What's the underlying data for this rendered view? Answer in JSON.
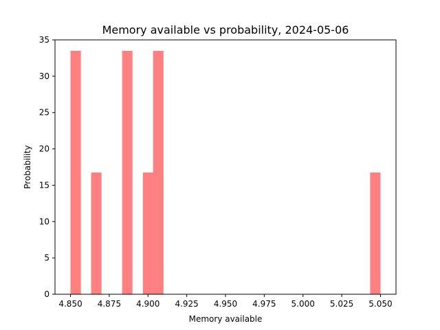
{
  "chart_data": {
    "type": "bar",
    "title": "Memory available vs probability, 2024-05-06",
    "xlabel": "Memory available",
    "ylabel": "Probability",
    "xlim": [
      4.84,
      5.06
    ],
    "ylim": [
      0,
      35
    ],
    "xticks": [
      "4.850",
      "4.875",
      "4.900",
      "4.925",
      "4.950",
      "4.975",
      "5.000",
      "5.025",
      "5.050"
    ],
    "xtick_values": [
      4.85,
      4.875,
      4.9,
      4.925,
      4.95,
      4.975,
      5.0,
      5.025,
      5.05
    ],
    "yticks": [
      "0",
      "5",
      "10",
      "15",
      "20",
      "25",
      "30",
      "35"
    ],
    "ytick_values": [
      0,
      5,
      10,
      15,
      20,
      25,
      30,
      35
    ],
    "bin_width": 0.0067,
    "bars": [
      {
        "x_start": 4.85,
        "value": 33.5
      },
      {
        "x_start": 4.8633,
        "value": 16.75
      },
      {
        "x_start": 4.8833,
        "value": 33.5
      },
      {
        "x_start": 4.8967,
        "value": 16.75
      },
      {
        "x_start": 4.9033,
        "value": 33.5
      },
      {
        "x_start": 5.0433,
        "value": 16.75
      }
    ],
    "grid": false,
    "bar_color": "#ff8080"
  }
}
